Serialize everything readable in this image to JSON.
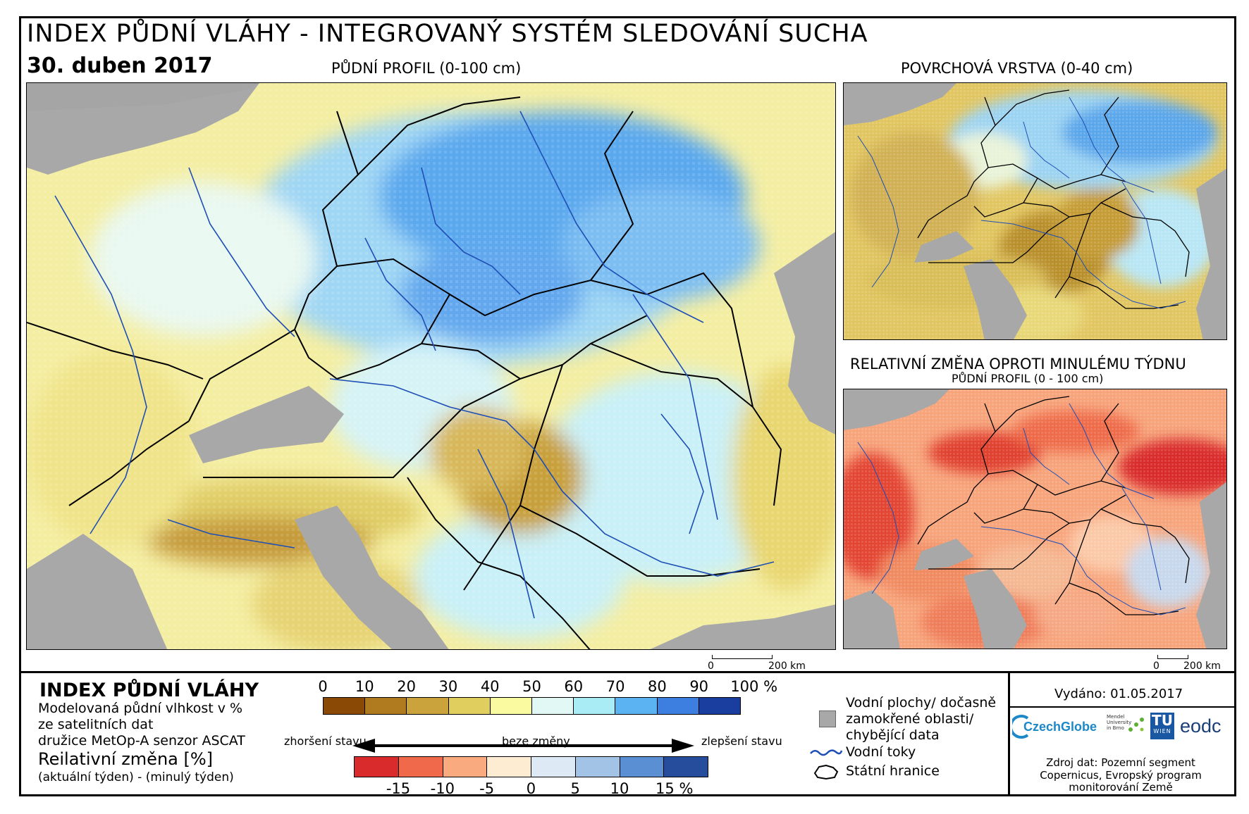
{
  "header": {
    "title": "INDEX PŮDNÍ VLÁHY - INTEGROVANÝ SYSTÉM SLEDOVÁNÍ SUCHA",
    "date": "30. duben 2017"
  },
  "maps": {
    "main_label": "PŮDNÍ PROFIL (0-100 cm)",
    "surface_label": "POVRCHOVÁ VRSTVA (0-40 cm)",
    "change_label": "RELATIVNÍ ZMĚNA OPROTI MINULÉMU TÝDNU",
    "change_sublabel": "PŮDNÍ PROFIL (0 - 100 cm)",
    "scalebar_zero": "0",
    "scalebar_dist": "200 km"
  },
  "legend": {
    "title": "INDEX PŮDNÍ VLÁHY",
    "desc_line1": "Modelovaná půdní vlhkost v %",
    "desc_line2": "ze satelitních dat",
    "desc_line3": "družice MetOp-A senzor ASCAT",
    "rel_title": "Reilativní změna [%]",
    "rel_sub": "(aktuální týden) - (minulý týden)",
    "moisture_ticks": [
      "0",
      "10",
      "20",
      "30",
      "40",
      "50",
      "60",
      "70",
      "80",
      "90",
      "100 %"
    ],
    "moisture_colors": [
      "#8a4a05",
      "#b07a1e",
      "#cba33c",
      "#e0cf5e",
      "#fafaa0",
      "#e2f8f4",
      "#a9ecf6",
      "#5cb3f2",
      "#3d7fe0",
      "#1a3ea0"
    ],
    "change_ticks": [
      "-15",
      "-10",
      "-5",
      "0",
      "5",
      "10",
      "15 %"
    ],
    "change_colors": [
      "#d92b2b",
      "#f0694a",
      "#f9ab7f",
      "#fdebd2",
      "#dde9f4",
      "#a3c3e6",
      "#5b8fd3",
      "#264d9c"
    ],
    "worse": "zhoršení stavu",
    "nochange": "beze změny",
    "better": "zlepšení stavu",
    "key_water_1": "Vodní plochy/ dočasně",
    "key_water_2": "zamokřené oblasti/",
    "key_water_3": "chybějící data",
    "key_rivers": "Vodní toky",
    "key_borders": "Státní hranice"
  },
  "footer": {
    "issued": "Vydáno: 01.05.2017",
    "logo_czechglobe": "CzechGlobe",
    "logo_mendel_1": "Mendel",
    "logo_mendel_2": "University",
    "logo_mendel_3": "in Brno",
    "logo_tu_1": "TU",
    "logo_tu_2": "WIEN",
    "logo_eodc": "eodc",
    "source_line1": "Zdroj dat: Pozemní segment",
    "source_line2": "Copernicus, Evropský program",
    "source_line3": "monitorování Země"
  }
}
